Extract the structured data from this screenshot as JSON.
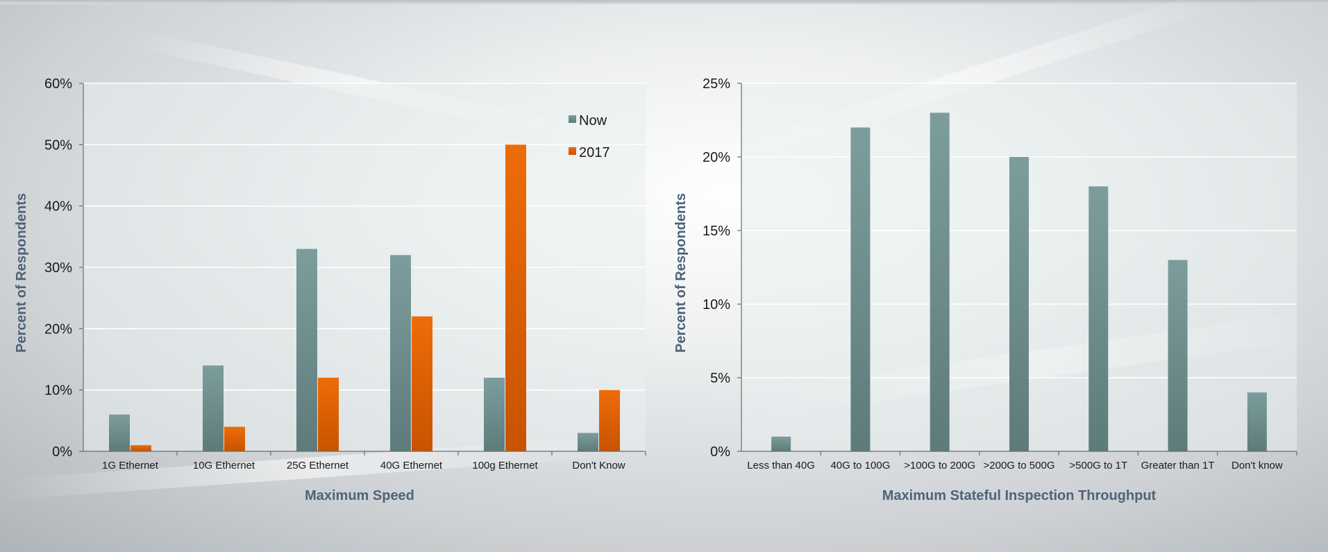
{
  "colors": {
    "now": "#6f9393",
    "y2017": "#e56605",
    "axis_title": "#4f6378"
  },
  "chart_data": [
    {
      "type": "bar",
      "title": "",
      "xlabel": "Maximum Speed",
      "ylabel": "Percent of Respondents",
      "ylim": [
        0,
        60
      ],
      "yticks": [
        "0%",
        "10%",
        "20%",
        "30%",
        "40%",
        "50%",
        "60%"
      ],
      "categories": [
        "1G Ethernet",
        "10G Ethernet",
        "25G Ethernet",
        "40G Ethernet",
        "100g Ethernet",
        "Don't Know"
      ],
      "series": [
        {
          "name": "Now",
          "values": [
            6,
            14,
            33,
            32,
            12,
            3
          ]
        },
        {
          "name": "2017",
          "values": [
            1,
            4,
            12,
            22,
            50,
            10
          ]
        }
      ],
      "legend": "top-right",
      "grid": true
    },
    {
      "type": "bar",
      "title": "",
      "xlabel": "Maximum Stateful Inspection Throughput",
      "ylabel": "Percent of Respondents",
      "ylim": [
        0,
        25
      ],
      "yticks": [
        "0%",
        "5%",
        "10%",
        "15%",
        "20%",
        "25%"
      ],
      "categories": [
        "Less than 40G",
        "40G to 100G",
        ">100G to 200G",
        ">200G to 500G",
        ">500G to 1T",
        "Greater than 1T",
        "Don't know"
      ],
      "series": [
        {
          "values": [
            1,
            22,
            23,
            20,
            18,
            13,
            4
          ]
        }
      ],
      "grid": true
    }
  ]
}
